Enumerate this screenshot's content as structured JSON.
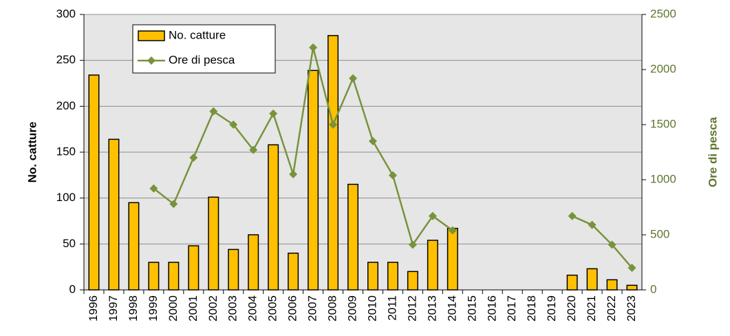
{
  "chart_data": {
    "type": "bar",
    "categories": [
      "1996",
      "1997",
      "1998",
      "1999",
      "2000",
      "2001",
      "2002",
      "2003",
      "2004",
      "2005",
      "2006",
      "2007",
      "2008",
      "2009",
      "2010",
      "2011",
      "2012",
      "2013",
      "2014",
      "2015",
      "2016",
      "2017",
      "2018",
      "2019",
      "2020",
      "2021",
      "2022",
      "2023"
    ],
    "series": [
      {
        "name": "No. catture",
        "type": "bar",
        "color": "#ffc000",
        "values": [
          234,
          164,
          95,
          30,
          30,
          48,
          101,
          44,
          60,
          158,
          40,
          239,
          277,
          115,
          30,
          30,
          20,
          54,
          67,
          null,
          null,
          null,
          null,
          null,
          16,
          23,
          11,
          5
        ]
      },
      {
        "name": "Ore di pesca",
        "type": "line",
        "axis": "y2",
        "color": "#77933c",
        "values": [
          null,
          null,
          null,
          920,
          780,
          1200,
          1620,
          1500,
          1270,
          1600,
          1050,
          2200,
          1500,
          1920,
          1350,
          1040,
          410,
          670,
          540,
          null,
          null,
          null,
          null,
          null,
          670,
          590,
          410,
          200
        ]
      }
    ],
    "y_label": "No. catture",
    "y2_label": "Ore di pesca",
    "ylim": [
      0,
      300
    ],
    "yticks": [
      0,
      50,
      100,
      150,
      200,
      250,
      300
    ],
    "y2lim": [
      0,
      2500
    ],
    "y2ticks": [
      0,
      500,
      1000,
      1500,
      2000,
      2500
    ],
    "y2color": "#5f7530",
    "grid": true,
    "legend": "top-left"
  }
}
